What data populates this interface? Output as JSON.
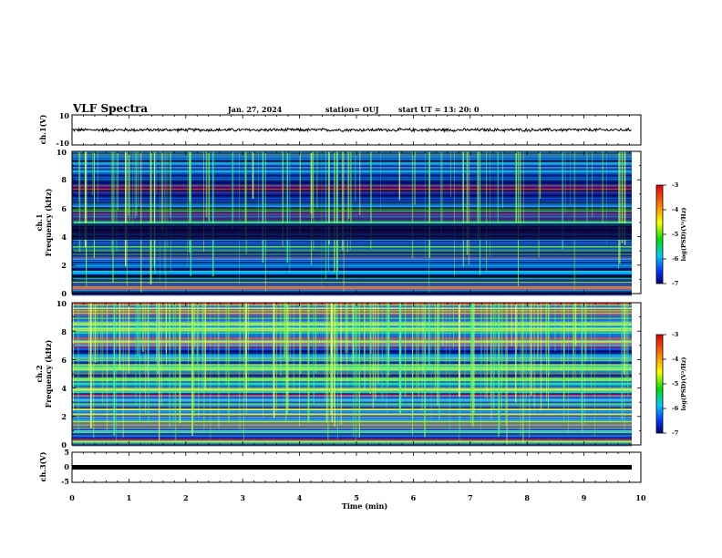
{
  "header": {
    "title": "VLF Spectra",
    "date": "Jan. 27, 2024",
    "station": "station= OUJ",
    "start": "start UT =  13: 20: 0"
  },
  "chart_data": [
    {
      "type": "line",
      "panel": "ch1-waveform",
      "ylabel": "ch.1(V)",
      "ylim": [
        -10,
        10
      ],
      "yticks": [
        "10",
        "-10"
      ],
      "xlim": [
        0,
        10
      ],
      "series": [
        {
          "values": {
            "level": 0,
            "amplitude": 0.6
          }
        }
      ]
    },
    {
      "type": "heatmap",
      "panel": "ch1-spectrogram",
      "ylabel_line1": "ch.1",
      "ylabel_line2": "Frequency (kHz)",
      "ylim": [
        0,
        10
      ],
      "yticks": [
        "0",
        "2",
        "4",
        "6",
        "8",
        "10"
      ],
      "xlim": [
        0,
        9.85
      ],
      "colorbar": {
        "label": "log(PSD)(V²/Hz)",
        "range": [
          -7,
          -3
        ],
        "ticks": [
          "-3",
          "-4",
          "-5",
          "-6",
          "-7"
        ]
      }
    },
    {
      "type": "heatmap",
      "panel": "ch2-spectrogram",
      "ylabel_line1": "ch.2",
      "ylabel_line2": "Frequency (kHz)",
      "ylim": [
        0,
        10
      ],
      "yticks": [
        "0",
        "2",
        "4",
        "6",
        "8",
        "10"
      ],
      "xlim": [
        0,
        9.85
      ],
      "colorbar": {
        "label": "log(PSD)(V²/Hz)",
        "range": [
          -7,
          -3
        ],
        "ticks": [
          "-3",
          "-4",
          "-5",
          "-6",
          "-7"
        ]
      }
    },
    {
      "type": "line",
      "panel": "ch3-waveform",
      "ylabel": "ch.3(V)",
      "ylim": [
        -5,
        5
      ],
      "yticks": [
        "5",
        "0",
        "-5"
      ],
      "xlim": [
        0,
        10
      ],
      "series": [
        {
          "values": {
            "level": 0,
            "amplitude": 0.2
          }
        }
      ]
    }
  ],
  "time_axis": {
    "label": "Time (min)",
    "range": [
      0,
      10
    ],
    "ticks": [
      "0",
      "1",
      "2",
      "3",
      "4",
      "5",
      "6",
      "7",
      "8",
      "9",
      "10"
    ]
  }
}
